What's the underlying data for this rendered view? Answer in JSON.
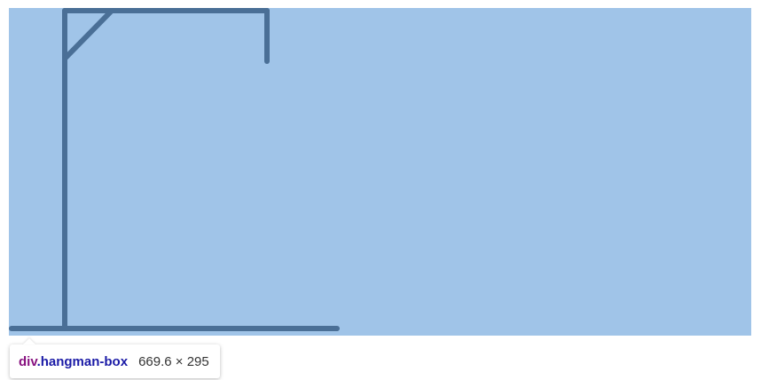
{
  "inspector_tooltip": {
    "tag": "div",
    "class_selector": ".hangman-box",
    "dimensions": "669.6 × 295"
  },
  "colors": {
    "box_background": "#a0c4e8",
    "gallows_stroke": "#4a6f96",
    "tag_color": "#881280",
    "class_color": "#1a1aa6"
  },
  "gallows": {
    "parts": [
      "base",
      "post",
      "beam",
      "brace",
      "rope"
    ]
  }
}
